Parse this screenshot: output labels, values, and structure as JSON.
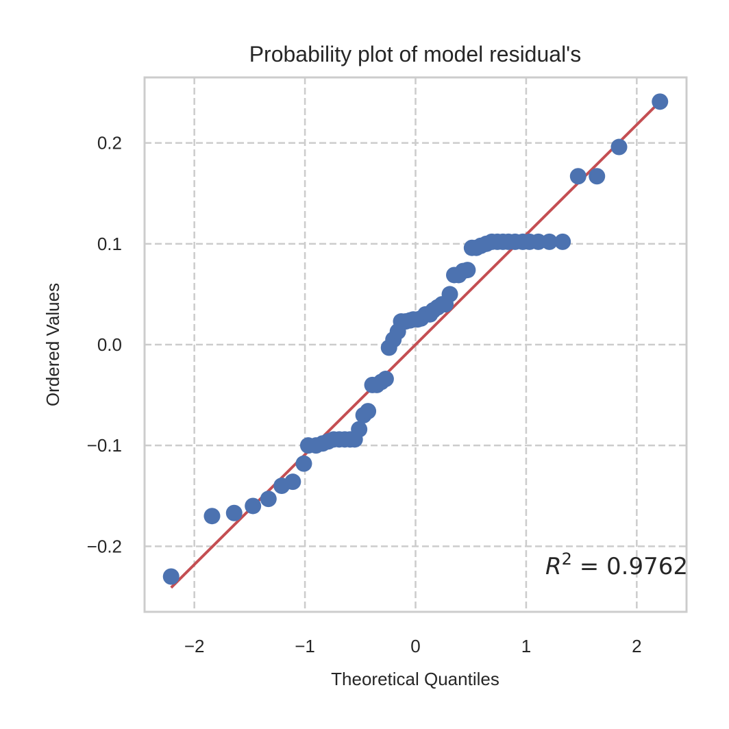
{
  "chart_data": {
    "type": "scatter",
    "title": "Probability plot of model residual's",
    "xlabel": "Theoretical Quantiles",
    "ylabel": "Ordered Values",
    "xlim": [
      -2.45,
      2.45
    ],
    "ylim": [
      -0.265,
      0.265
    ],
    "xticks": [
      -2,
      -1,
      0,
      1,
      2
    ],
    "xtick_labels": [
      "−2",
      "−1",
      "0",
      "1",
      "2"
    ],
    "yticks": [
      -0.2,
      -0.1,
      0.0,
      0.1,
      0.2
    ],
    "ytick_labels": [
      "−0.2",
      "−0.1",
      "0.0",
      "0.1",
      "0.2"
    ],
    "grid": true,
    "annotation": {
      "var": "R",
      "sup": "2",
      "rest": " = 0.9762"
    },
    "colors": {
      "points": "#4c72b0",
      "fit_line": "#c44e52",
      "grid": "#cccccc",
      "frame": "#cccccc"
    },
    "fit_line": {
      "x": [
        -2.21,
        2.21
      ],
      "y": [
        -0.241,
        0.241
      ]
    },
    "points": {
      "x": [
        -2.21,
        -1.84,
        -1.64,
        -1.47,
        -1.33,
        -1.21,
        -1.11,
        -1.01,
        -0.97,
        -0.9,
        -0.84,
        -0.79,
        -0.74,
        -0.69,
        -0.64,
        -0.59,
        -0.55,
        -0.51,
        -0.47,
        -0.43,
        -0.39,
        -0.35,
        -0.31,
        -0.27,
        -0.24,
        -0.2,
        -0.16,
        -0.13,
        -0.09,
        -0.05,
        -0.02,
        0.02,
        0.05,
        0.09,
        0.13,
        0.16,
        0.2,
        0.24,
        0.27,
        0.31,
        0.35,
        0.39,
        0.43,
        0.47,
        0.51,
        0.55,
        0.59,
        0.64,
        0.69,
        0.74,
        0.79,
        0.84,
        0.9,
        0.97,
        1.03,
        1.11,
        1.21,
        1.33,
        1.47,
        1.64,
        1.84,
        2.21
      ],
      "y": [
        -0.23,
        -0.17,
        -0.167,
        -0.16,
        -0.153,
        -0.14,
        -0.136,
        -0.118,
        -0.1,
        -0.1,
        -0.098,
        -0.096,
        -0.094,
        -0.094,
        -0.094,
        -0.094,
        -0.094,
        -0.084,
        -0.07,
        -0.066,
        -0.04,
        -0.04,
        -0.037,
        -0.034,
        -0.003,
        0.005,
        0.013,
        0.023,
        0.023,
        0.024,
        0.025,
        0.025,
        0.026,
        0.03,
        0.03,
        0.034,
        0.037,
        0.04,
        0.04,
        0.05,
        0.069,
        0.069,
        0.073,
        0.074,
        0.096,
        0.096,
        0.098,
        0.1,
        0.102,
        0.102,
        0.102,
        0.102,
        0.102,
        0.102,
        0.102,
        0.102,
        0.102,
        0.102,
        0.167,
        0.167,
        0.196,
        0.241
      ]
    }
  }
}
